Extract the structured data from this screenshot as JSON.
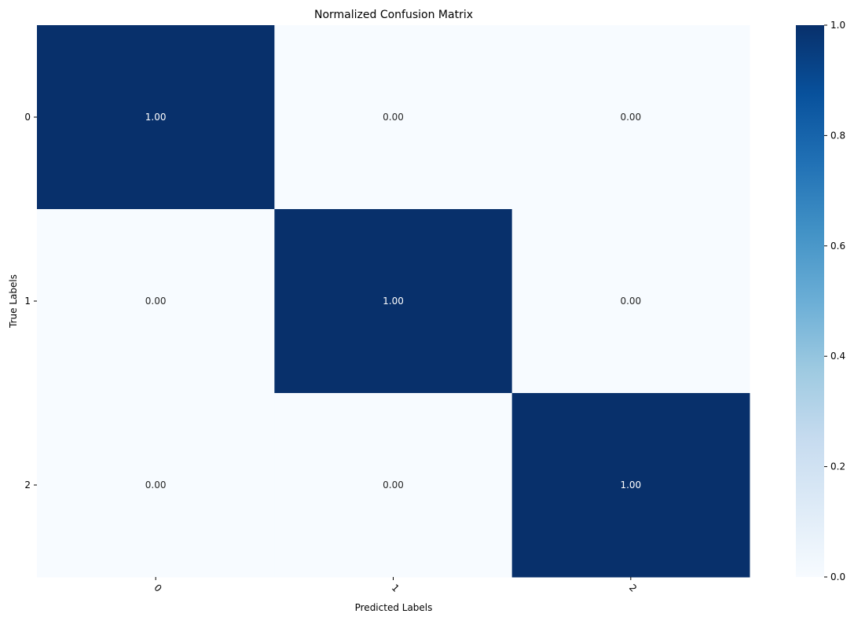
{
  "chart_data": {
    "type": "heatmap",
    "title": "Normalized Confusion Matrix",
    "xlabel": "Predicted Labels",
    "ylabel": "True Labels",
    "x_categories": [
      "0",
      "1",
      "2"
    ],
    "y_categories": [
      "0",
      "1",
      "2"
    ],
    "values": [
      [
        1.0,
        0.0,
        0.0
      ],
      [
        0.0,
        1.0,
        0.0
      ],
      [
        0.0,
        0.0,
        1.0
      ]
    ],
    "annotations": [
      [
        "1.00",
        "0.00",
        "0.00"
      ],
      [
        "0.00",
        "1.00",
        "0.00"
      ],
      [
        "0.00",
        "0.00",
        "1.00"
      ]
    ],
    "colormap": "Blues",
    "colorbar": {
      "range": [
        0.0,
        1.0
      ],
      "ticks": [
        "0.0",
        "0.2",
        "0.4",
        "0.6",
        "0.8",
        "1.0"
      ]
    },
    "x_tick_rotation_deg": 45,
    "colors": {
      "low": "#f7fbff",
      "high": "#08306b",
      "annot_dark": "#262626",
      "annot_light": "#ffffff"
    }
  }
}
